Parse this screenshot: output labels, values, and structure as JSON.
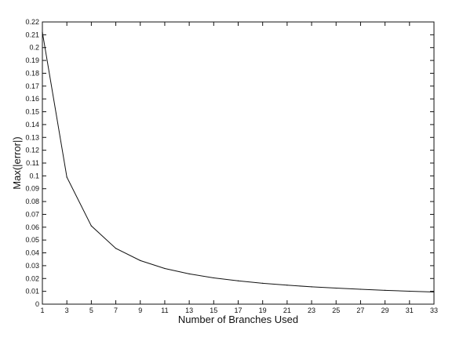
{
  "chart_data": {
    "type": "line",
    "title": "",
    "xlabel": "Number of Branches Used",
    "ylabel": "Max(|error|)",
    "xlim": [
      1,
      33
    ],
    "ylim": [
      0,
      0.22
    ],
    "xticks": [
      "1",
      "3",
      "5",
      "7",
      "9",
      "11",
      "13",
      "15",
      "17",
      "19",
      "21",
      "23",
      "25",
      "27",
      "29",
      "31",
      "33"
    ],
    "yticks": [
      "0",
      "0.01",
      "0.02",
      "0.03",
      "0.04",
      "0.05",
      "0.06",
      "0.07",
      "0.08",
      "0.09",
      "0.1",
      "0.11",
      "0.12",
      "0.13",
      "0.14",
      "0.15",
      "0.16",
      "0.17",
      "0.18",
      "0.19",
      "0.2",
      "0.21",
      "0.22"
    ],
    "grid": false,
    "series": [
      {
        "x": [
          1,
          3,
          5,
          7,
          9,
          11,
          13,
          15,
          17,
          19,
          21,
          23,
          25,
          27,
          29,
          31,
          33
        ],
        "values": [
          0.212,
          0.099,
          0.061,
          0.0435,
          0.034,
          0.0278,
          0.0236,
          0.0205,
          0.0182,
          0.0163,
          0.0148,
          0.0135,
          0.0125,
          0.0116,
          0.0108,
          0.0101,
          0.0095
        ]
      }
    ]
  }
}
